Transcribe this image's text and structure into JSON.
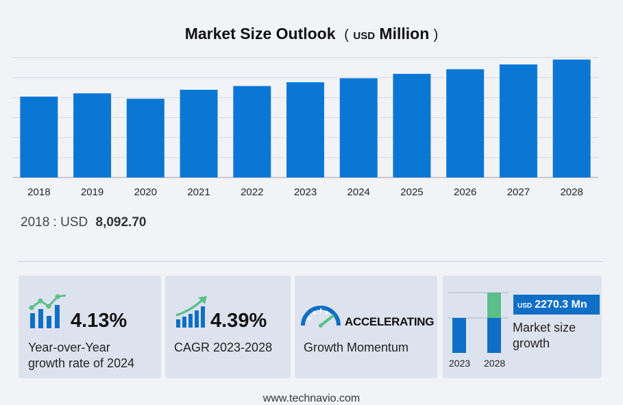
{
  "title": {
    "main": "Market Size Outlook",
    "open_paren": "(",
    "usd": "USD",
    "unit": "Million",
    "close_paren": ")"
  },
  "chart_data": {
    "type": "bar",
    "categories": [
      "2018",
      "2019",
      "2020",
      "2021",
      "2022",
      "2023",
      "2024",
      "2025",
      "2026",
      "2027",
      "2028"
    ],
    "values": [
      8092.7,
      8420,
      7880,
      8780,
      9150,
      9530,
      9930,
      10370,
      10830,
      11310,
      11800
    ],
    "ylim": [
      0,
      12000
    ],
    "grid": true,
    "color": "#0a77d5"
  },
  "base_value": {
    "label": "2018 : USD",
    "value": "8,092.70"
  },
  "cards": {
    "yoy": {
      "value": "4.13%",
      "line1": "Year-over-Year",
      "line2": "growth rate of 2024"
    },
    "cagr": {
      "value": "4.39%",
      "line1": "CAGR  2023-2028"
    },
    "momentum": {
      "value": "ACCELERATING",
      "line1": "Growth Momentum"
    },
    "market": {
      "badge_usd": "USD",
      "badge_value": "2270.3 Mn",
      "line1": "Market size",
      "line2": "growth",
      "year_a": "2023",
      "year_b": "2028",
      "increment_color": "#5cbf8a"
    }
  },
  "footer": "www.technavio.com"
}
